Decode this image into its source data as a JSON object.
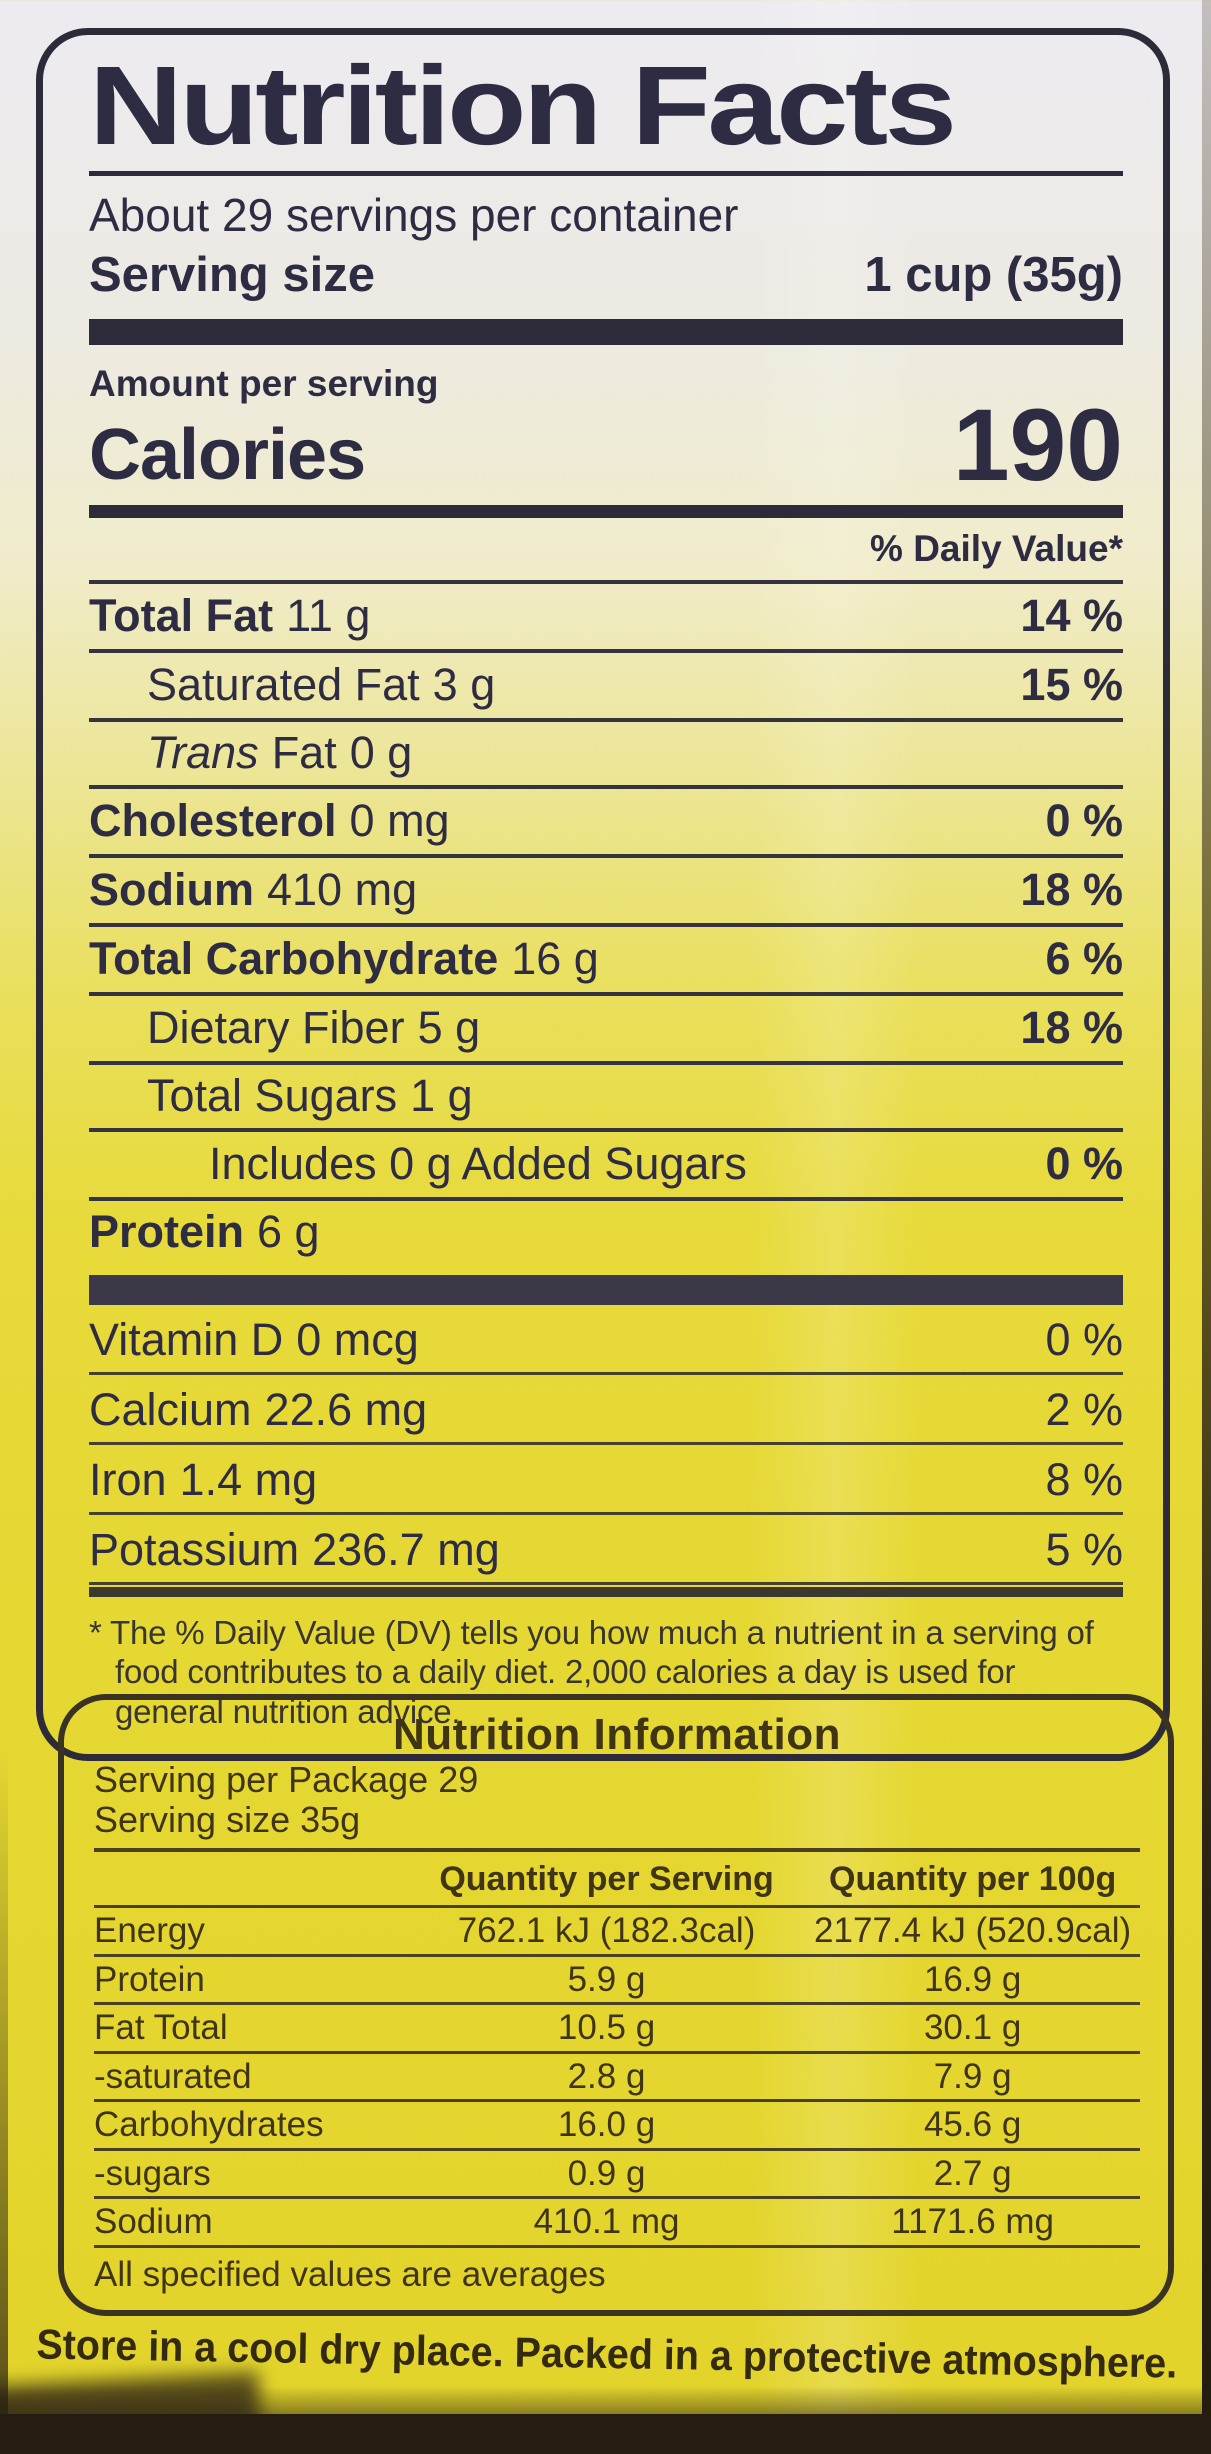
{
  "panel1": {
    "title": "Nutrition Facts",
    "servings_per_container": "About 29 servings per container",
    "serving_size_label": "Serving size",
    "serving_size_value": "1 cup (35g)",
    "amount_per_serving": "Amount per serving",
    "calories_label": "Calories",
    "calories_value": "190",
    "daily_value_header": "% Daily Value*",
    "rows": [
      {
        "name": "Total Fat",
        "amount": "11 g",
        "dv": "14 %"
      },
      {
        "name": "Saturated Fat",
        "amount": "3 g",
        "dv": "15 %"
      },
      {
        "name_italic": "Trans",
        "name": "Fat",
        "amount": "0 g",
        "dv": ""
      },
      {
        "name": "Cholesterol",
        "amount": "0 mg",
        "dv": "0 %"
      },
      {
        "name": "Sodium",
        "amount": "410 mg",
        "dv": "18 %"
      },
      {
        "name": "Total Carbohydrate",
        "amount": "16 g",
        "dv": "6 %"
      },
      {
        "name": "Dietary Fiber",
        "amount": "5 g",
        "dv": "18 %"
      },
      {
        "name": "Total Sugars",
        "amount": "1 g",
        "dv": ""
      },
      {
        "name": "Includes 0 g Added Sugars",
        "amount": "",
        "dv": "0 %"
      },
      {
        "name": "Protein",
        "amount": "6 g",
        "dv": ""
      }
    ],
    "micronutrients": [
      {
        "name": "Vitamin D",
        "amount": "0 mcg",
        "dv": "0 %"
      },
      {
        "name": "Calcium",
        "amount": "22.6 mg",
        "dv": "2 %"
      },
      {
        "name": "Iron",
        "amount": "1.4 mg",
        "dv": "8 %"
      },
      {
        "name": "Potassium",
        "amount": "236.7 mg",
        "dv": "5 %"
      }
    ],
    "footnote": "* The % Daily Value (DV) tells you how much a nutrient in a serving of food contributes to a daily diet. 2,000 calories a day is used for general nutrition advice."
  },
  "panel2": {
    "title": "Nutrition Information",
    "serving_per_package": "Serving per Package 29",
    "serving_size": "Serving size 35g",
    "col1_header": "Quantity per Serving",
    "col2_header": "Quantity per 100g",
    "rows": [
      {
        "name": "Energy",
        "per_serving": "762.1 kJ (182.3cal)",
        "per_100g": "2177.4 kJ (520.9cal)"
      },
      {
        "name": "Protein",
        "per_serving": "5.9 g",
        "per_100g": "16.9 g"
      },
      {
        "name": "Fat Total",
        "per_serving": "10.5 g",
        "per_100g": "30.1 g"
      },
      {
        "name": "-saturated",
        "per_serving": "2.8 g",
        "per_100g": "7.9 g"
      },
      {
        "name": "Carbohydrates",
        "per_serving": "16.0 g",
        "per_100g": "45.6 g"
      },
      {
        "name": "-sugars",
        "per_serving": "0.9 g",
        "per_100g": "2.7 g"
      },
      {
        "name": "Sodium",
        "per_serving": "410.1 mg",
        "per_100g": "1171.6 mg"
      }
    ],
    "footer": "All specified values are averages"
  },
  "storage_note": "Store in a cool dry place. Packed in a protective atmosphere.",
  "colors": {
    "label_text_navy": "#2e2c42",
    "panel2_text_olive": "#3f3514",
    "package_yellow": "#e7da3a",
    "package_top_white": "#edebf1",
    "dark_edge": "#261d12"
  }
}
